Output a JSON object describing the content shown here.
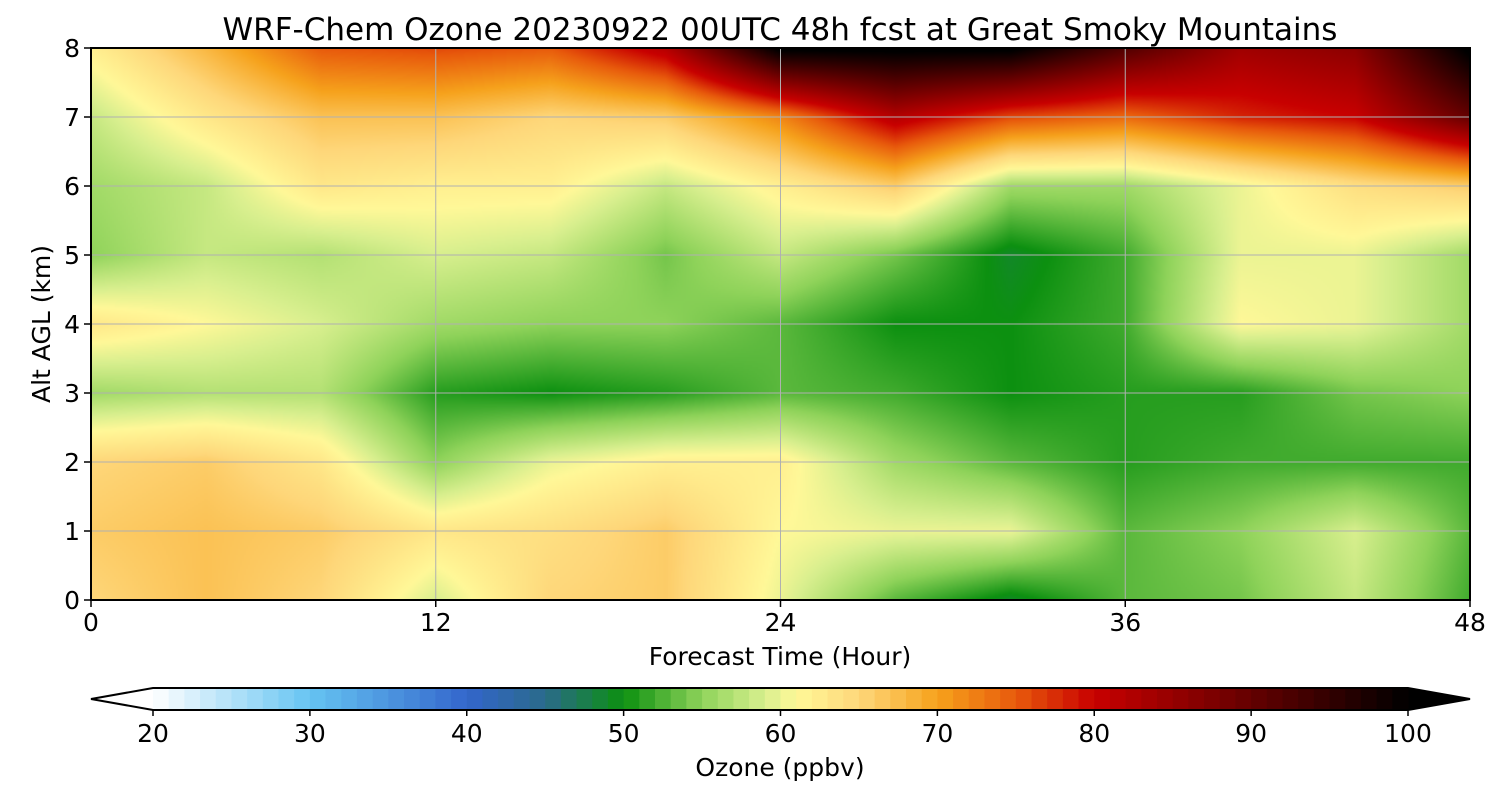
{
  "chart_data": {
    "type": "heatmap",
    "title": "WRF-Chem Ozone  20230922 00UTC 48h fcst at Great Smoky Mountains",
    "xlabel": "Forecast Time (Hour)",
    "ylabel": "Alt AGL (km)",
    "xlim": [
      0,
      48
    ],
    "ylim": [
      0,
      8
    ],
    "x_ticks": [
      "0",
      "12",
      "24",
      "36",
      "48"
    ],
    "y_ticks": [
      "0",
      "1",
      "2",
      "3",
      "4",
      "5",
      "6",
      "7",
      "8"
    ],
    "grid": true,
    "x": [
      0,
      4,
      8,
      12,
      16,
      20,
      24,
      28,
      32,
      36,
      40,
      44,
      48
    ],
    "y": [
      0,
      1,
      2,
      3,
      4,
      5,
      6,
      7,
      8
    ],
    "z_units": "ppbv",
    "z": [
      [
        65,
        67,
        65,
        59,
        65,
        66,
        60,
        53,
        49,
        53,
        54,
        58,
        52
      ],
      [
        66,
        67,
        66,
        63,
        64,
        66,
        61,
        60,
        60,
        53,
        55,
        59,
        53
      ],
      [
        65,
        66,
        63,
        55,
        60,
        62,
        62,
        56,
        53,
        51,
        52,
        52,
        52
      ],
      [
        56,
        57,
        57,
        51,
        50,
        51,
        53,
        52,
        50,
        51,
        51,
        54,
        55
      ],
      [
        63,
        61,
        59,
        56,
        55,
        55,
        53,
        50,
        50,
        52,
        61,
        60,
        56
      ],
      [
        55,
        58,
        57,
        59,
        58,
        54,
        58,
        54,
        49,
        52,
        60,
        60,
        56
      ],
      [
        56,
        58,
        63,
        62,
        62,
        58,
        62,
        66,
        56,
        56,
        60,
        64,
        66
      ],
      [
        58,
        63,
        67,
        67,
        65,
        66,
        72,
        82,
        76,
        74,
        78,
        80,
        90
      ],
      [
        62,
        68,
        75,
        76,
        75,
        82,
        101,
        101,
        101,
        92,
        84,
        86,
        101
      ]
    ],
    "colorbar": {
      "label": "Ozone  (ppbv)",
      "min": 20,
      "max": 100,
      "ticks": [
        "20",
        "30",
        "40",
        "50",
        "60",
        "70",
        "80",
        "90",
        "100"
      ],
      "extend": "both",
      "stops": [
        {
          "v": 20,
          "c": "#ffffff"
        },
        {
          "v": 30,
          "c": "#66c4f2"
        },
        {
          "v": 40,
          "c": "#3366cc"
        },
        {
          "v": 45,
          "c": "#2a6a8a"
        },
        {
          "v": 50,
          "c": "#0c9010"
        },
        {
          "v": 55,
          "c": "#8fd35a"
        },
        {
          "v": 59,
          "c": "#d8ef8e"
        },
        {
          "v": 61,
          "c": "#fff898"
        },
        {
          "v": 65,
          "c": "#fed77a"
        },
        {
          "v": 70,
          "c": "#f6a21c"
        },
        {
          "v": 75,
          "c": "#e85a0c"
        },
        {
          "v": 80,
          "c": "#c80000"
        },
        {
          "v": 90,
          "c": "#640000"
        },
        {
          "v": 100,
          "c": "#000000"
        }
      ]
    }
  }
}
